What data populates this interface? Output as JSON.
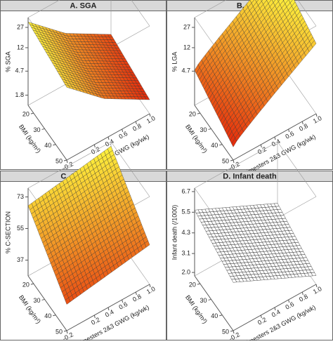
{
  "chart_data": [
    {
      "type": "surface",
      "title": "A.  SGA",
      "zlabel": "% SGA",
      "ylabel": "BMI (kg/m²)",
      "xlabel": "Trimesters 2&3 GWG (kg/wk)",
      "xlim": [
        -0.2,
        1
      ],
      "xticks": [
        -0.2,
        0.2,
        0.4,
        0.6,
        0.8,
        {
          "value": 1,
          "label": "1.0"
        }
      ],
      "ylim": [
        15,
        50
      ],
      "yticks": [
        20,
        30,
        40,
        50
      ],
      "zlim": [
        1.2,
        40
      ],
      "zticks": [
        27,
        12,
        4.7,
        1.8
      ],
      "zlog": true,
      "colors": [
        "#e00000",
        "#ffff40"
      ],
      "mesh": "#333333"
    },
    {
      "type": "surface",
      "title": "B.  LGA",
      "zlabel": "% LGA",
      "ylabel": "BMI (kg/m²)",
      "xlabel": "Trimesters 2&3 GWG (kg/wk)",
      "xlim": [
        -0.2,
        1
      ],
      "xticks": [
        -0.2,
        0.2,
        0.4,
        0.6,
        0.8,
        {
          "value": 1,
          "label": "1.0"
        }
      ],
      "ylim": [
        15,
        50
      ],
      "yticks": [
        20,
        30,
        40,
        50
      ],
      "zlim": [
        1.2,
        40
      ],
      "zticks": [
        27,
        12,
        4.7
      ],
      "zlog": true,
      "colors": [
        "#e00000",
        "#ffff40"
      ],
      "mesh": "#333333"
    },
    {
      "type": "surface",
      "title": "C.  C-section",
      "zlabel": "% C-SECTION",
      "ylabel": "BMI (kg/m²)",
      "xlabel": "Trimesters 2&3 GWG (kg/wk)",
      "xlim": [
        -0.2,
        1
      ],
      "xticks": [
        -0.2,
        0.2,
        0.4,
        0.6,
        0.8,
        {
          "value": 1,
          "label": "1.0"
        }
      ],
      "ylim": [
        15,
        50
      ],
      "yticks": [
        20,
        30,
        40,
        50
      ],
      "zlim": [
        28,
        78
      ],
      "zticks": [
        73,
        55,
        37
      ],
      "zlog": false,
      "colors": [
        "#e00000",
        "#ffff40"
      ],
      "mesh": "#333333"
    },
    {
      "type": "surface",
      "title": "D.  Infant death",
      "zlabel": "Infant death (/1000)",
      "ylabel": "BMI (kg/m²)",
      "xlabel": "Trimesters 2&3 GWG (kg/wk)",
      "xlim": [
        -0.2,
        1
      ],
      "xticks": [
        -0.2,
        0.2,
        0.4,
        0.6,
        0.8,
        {
          "value": 1,
          "label": "1.0"
        }
      ],
      "ylim": [
        15,
        50
      ],
      "yticks": [
        20,
        30,
        40,
        50
      ],
      "zlim": [
        1.8,
        6.9
      ],
      "zticks": [
        6.7,
        5.5,
        4.3,
        3.1,
        {
          "value": 2,
          "label": "2.0"
        }
      ],
      "zlog": false,
      "colors": [
        "#ffffff",
        "#ffffff"
      ],
      "mesh": "#000000"
    }
  ]
}
